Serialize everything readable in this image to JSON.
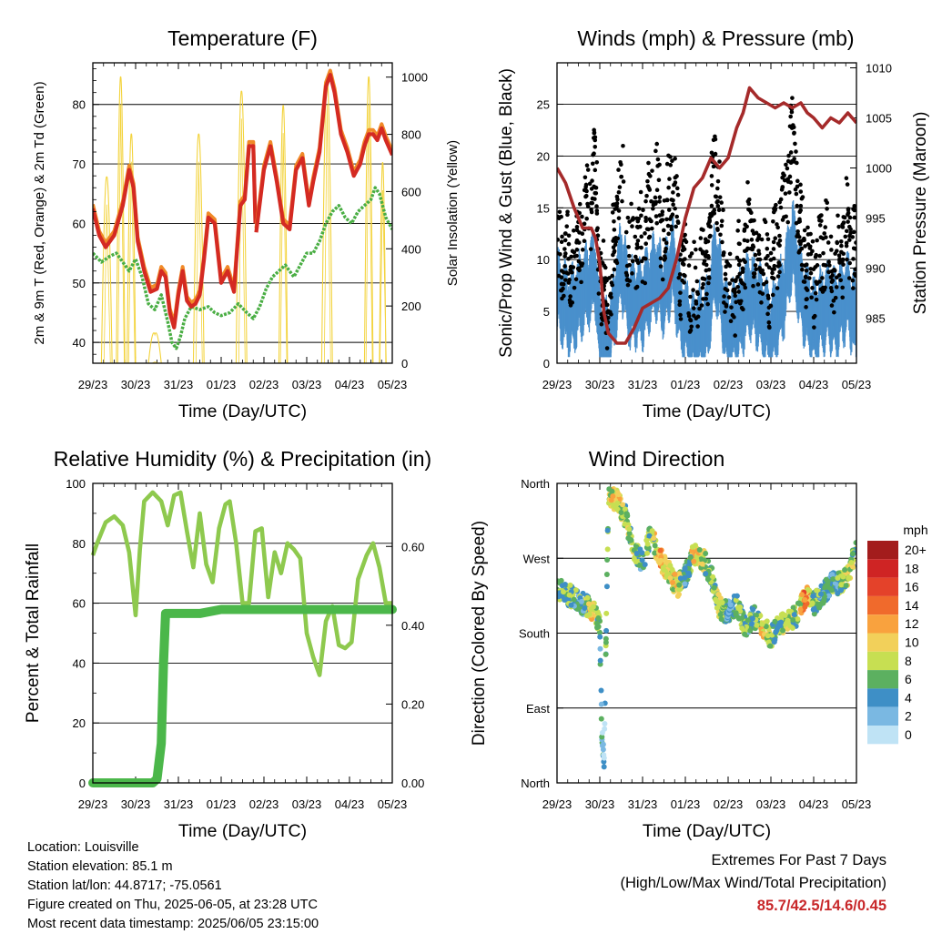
{
  "chart_data": [
    {
      "type": "line",
      "title": "Temperature (F)",
      "xlabel": "Time (Day/UTC)",
      "ylabel": "2m & 9m T (Red, Orange) & 2m Td (Green)",
      "y2label": "Solar Insolation (Yellow)",
      "x_ticks": [
        "29/23",
        "30/23",
        "31/23",
        "01/23",
        "02/23",
        "03/23",
        "04/23",
        "05/23"
      ],
      "xlim": [
        0,
        7
      ],
      "ylim": [
        36.5,
        87
      ],
      "y_ticks": [
        40,
        50,
        60,
        70,
        80
      ],
      "y2lim": [
        0,
        1050
      ],
      "y2_ticks": [
        0,
        200,
        400,
        600,
        800,
        1000
      ],
      "grid": "horizontal",
      "series": [
        {
          "name": "2m T",
          "color": "#d42a22",
          "axis": "left",
          "x": [
            0,
            0.15,
            0.3,
            0.5,
            0.7,
            0.85,
            0.95,
            1.05,
            1.2,
            1.35,
            1.5,
            1.6,
            1.7,
            1.8,
            1.9,
            2.0,
            2.1,
            2.2,
            2.3,
            2.4,
            2.5,
            2.6,
            2.7,
            2.85,
            3.0,
            3.15,
            3.3,
            3.45,
            3.55,
            3.65,
            3.75,
            3.8
          ],
          "y": [
            62.5,
            58,
            56,
            58,
            63,
            69,
            66,
            57,
            52,
            48.5,
            49,
            52,
            51,
            45,
            42.5,
            48,
            52,
            47,
            46,
            46.5,
            48,
            54,
            61,
            60,
            50,
            52,
            48.5,
            63,
            64,
            73,
            73,
            60
          ]
        },
        {
          "name": "2m T (cont.)",
          "color": "#d42a22",
          "axis": "left",
          "x": [
            3.82,
            4.0,
            4.15,
            4.3,
            4.45,
            4.6,
            4.75,
            4.9,
            5.05,
            5.15,
            5.3,
            5.45,
            5.55,
            5.65,
            5.8,
            5.95,
            6.1,
            6.25,
            6.35,
            6.45,
            6.55,
            6.65,
            6.75,
            6.85,
            7.0
          ],
          "y": [
            58.5,
            69,
            73,
            67,
            60,
            59,
            69,
            71,
            63,
            67,
            72,
            83,
            85,
            82,
            75,
            72,
            68,
            70,
            73,
            75,
            75,
            74,
            76,
            74,
            71.5
          ]
        },
        {
          "name": "2m Td",
          "color": "#4aae44",
          "axis": "left",
          "x": [
            0,
            0.2,
            0.4,
            0.55,
            0.7,
            0.85,
            1.0,
            1.15,
            1.3,
            1.45,
            1.6,
            1.75,
            1.85,
            1.95,
            2.05,
            2.15,
            2.3,
            2.5,
            2.7,
            2.85,
            3.0,
            3.2,
            3.4,
            3.6,
            3.75,
            3.9,
            4.05,
            4.2,
            4.35,
            4.5,
            4.7,
            4.85,
            5.0,
            5.15,
            5.3,
            5.45,
            5.6,
            5.75,
            5.9,
            6.05,
            6.2,
            6.35,
            6.5,
            6.6,
            6.7,
            6.85,
            7.0
          ],
          "y": [
            55,
            53.5,
            54.5,
            55,
            53.5,
            52,
            54,
            51,
            46.5,
            45.5,
            48,
            43.5,
            40,
            39,
            41,
            44,
            46,
            45.5,
            46,
            45,
            44.5,
            45,
            46.5,
            45,
            44,
            46,
            49,
            51,
            52,
            53,
            51,
            53,
            55,
            55,
            57,
            60,
            62,
            63,
            61,
            60,
            62,
            63,
            64,
            66,
            65,
            61,
            59
          ]
        },
        {
          "name": "Solar Insolation",
          "color": "#f3d33c",
          "axis": "right",
          "peaks": [
            {
              "x": [
                0.2,
                0.45
              ],
              "y": 650
            },
            {
              "x": [
                0.55,
                0.75
              ],
              "y": 1000
            },
            {
              "x": [
                0.8,
                1.0
              ],
              "y": 800
            },
            {
              "x": [
                1.3,
                1.6
              ],
              "y": 100
            },
            {
              "x": [
                2.35,
                2.6
              ],
              "y": 800
            },
            {
              "x": [
                3.35,
                3.6
              ],
              "y": 950
            },
            {
              "x": [
                4.35,
                4.55
              ],
              "y": 900
            },
            {
              "x": [
                5.35,
                5.6
              ],
              "y": 1000
            },
            {
              "x": [
                6.35,
                6.55
              ],
              "y": 1000
            },
            {
              "x": [
                6.7,
                6.85
              ],
              "y": 700
            }
          ]
        }
      ]
    },
    {
      "type": "scatter",
      "title": "Winds (mph) & Pressure (mb)",
      "xlabel": "Time (Day/UTC)",
      "ylabel": "Sonic/Prop Wind & Gust (Blue, Black)",
      "y2label": "Station Pressure (Maroon)",
      "x_ticks": [
        "29/23",
        "30/23",
        "31/23",
        "01/23",
        "02/23",
        "03/23",
        "04/23",
        "05/23"
      ],
      "xlim": [
        0,
        7
      ],
      "ylim": [
        0,
        29
      ],
      "y_ticks": [
        0,
        5,
        10,
        15,
        20,
        25
      ],
      "y2lim": [
        980.5,
        1010.5
      ],
      "y2_ticks": [
        985,
        990,
        995,
        1000,
        1005,
        1010
      ],
      "grid": "horizontal",
      "series": [
        {
          "name": "Gust",
          "color": "#000000",
          "axis": "left",
          "x": [
            0,
            0.3,
            0.6,
            0.9,
            1.0,
            1.2,
            1.5,
            1.7,
            2.0,
            2.3,
            2.5,
            2.7,
            2.9,
            3.2,
            3.5,
            3.7,
            4.0,
            4.3,
            4.5,
            4.7,
            5.0,
            5.3,
            5.5,
            5.7,
            6.0,
            6.3,
            6.5,
            6.8,
            7.0
          ],
          "y": [
            11,
            9,
            13,
            18,
            8,
            5,
            19,
            10,
            12,
            17,
            12,
            19,
            9,
            7,
            9,
            20,
            6,
            9,
            13,
            11,
            8,
            15,
            22,
            12,
            8,
            12,
            9,
            13,
            9
          ]
        },
        {
          "name": "Wind",
          "color": "#4a90cc",
          "axis": "left",
          "x": [
            0,
            0.3,
            0.6,
            0.9,
            1.0,
            1.2,
            1.5,
            1.7,
            2.0,
            2.3,
            2.5,
            2.7,
            2.9,
            3.2,
            3.5,
            3.7,
            4.0,
            4.3,
            4.5,
            4.7,
            5.0,
            5.3,
            5.5,
            5.7,
            6.0,
            6.3,
            6.5,
            6.8,
            7.0
          ],
          "y": [
            7,
            5,
            7,
            9,
            3,
            2,
            10,
            6,
            6,
            9,
            7,
            10,
            5,
            3,
            4,
            10,
            3,
            5,
            7,
            6,
            3,
            7,
            12,
            7,
            4,
            6,
            5,
            7,
            4
          ]
        },
        {
          "name": "Station Pressure",
          "color": "#a52a2a",
          "axis": "right",
          "x": [
            0,
            0.2,
            0.4,
            0.6,
            0.8,
            0.9,
            1.0,
            1.1,
            1.2,
            1.4,
            1.6,
            1.8,
            2.0,
            2.2,
            2.4,
            2.6,
            2.8,
            3.0,
            3.2,
            3.4,
            3.6,
            3.8,
            4.0,
            4.2,
            4.35,
            4.5,
            4.7,
            4.9,
            5.1,
            5.3,
            5.5,
            5.7,
            5.85,
            6.0,
            6.2,
            6.4,
            6.6,
            6.8,
            7.0
          ],
          "y": [
            1000,
            998.5,
            996,
            994,
            994,
            993,
            990.5,
            985.5,
            983.5,
            982.5,
            982.5,
            984,
            986,
            986.5,
            987,
            988,
            991,
            995,
            998,
            999,
            1001,
            1000,
            1001,
            1004,
            1005.5,
            1008,
            1007,
            1006.5,
            1006,
            1006.5,
            1006,
            1006.5,
            1005.5,
            1005,
            1004,
            1005,
            1004.5,
            1005.5,
            1004.5
          ]
        }
      ]
    },
    {
      "type": "line",
      "title": "Relative Humidity (%) & Precipitation (in)",
      "xlabel": "Time (Day/UTC)",
      "ylabel": "Percent & Total Rainfall",
      "x_ticks": [
        "29/23",
        "30/23",
        "31/23",
        "01/23",
        "02/23",
        "03/23",
        "04/23",
        "05/23"
      ],
      "xlim": [
        0,
        7
      ],
      "ylim": [
        0,
        100
      ],
      "y_ticks": [
        0,
        20,
        40,
        60,
        80,
        100
      ],
      "y2lim": [
        0,
        0.76
      ],
      "y2_ticks": [
        "0.00",
        "0.20",
        "0.40",
        "0.60"
      ],
      "grid": "horizontal",
      "series": [
        {
          "name": "Relative Humidity",
          "color": "#8ec94e",
          "axis": "left",
          "x": [
            0,
            0.1,
            0.3,
            0.5,
            0.7,
            0.85,
            1.0,
            1.1,
            1.2,
            1.4,
            1.6,
            1.75,
            1.9,
            2.05,
            2.2,
            2.35,
            2.5,
            2.65,
            2.8,
            2.95,
            3.1,
            3.2,
            3.35,
            3.5,
            3.65,
            3.8,
            3.95,
            4.1,
            4.25,
            4.4,
            4.55,
            4.7,
            4.85,
            5.0,
            5.15,
            5.3,
            5.45,
            5.6,
            5.75,
            5.9,
            6.05,
            6.2,
            6.4,
            6.55,
            6.7,
            6.85,
            7.0
          ],
          "y": [
            76,
            80,
            87,
            89,
            86,
            77,
            56,
            78,
            94,
            97,
            94,
            86,
            96,
            97,
            84,
            72,
            90,
            73,
            67,
            85,
            93,
            94,
            80,
            60,
            60,
            84,
            85,
            62,
            77,
            70,
            80,
            78,
            75,
            50,
            42,
            36,
            54,
            59,
            46,
            45,
            47,
            68,
            76,
            80,
            72,
            60,
            60
          ]
        },
        {
          "name": "Total Rainfall",
          "color": "#4bb74a",
          "axis": "right",
          "x": [
            0,
            1.2,
            1.4,
            1.5,
            1.6,
            1.65,
            1.7,
            1.8,
            2.0,
            2.5,
            3.0,
            4.0,
            5.0,
            6.0,
            7.0
          ],
          "y": [
            0,
            0,
            0,
            0.01,
            0.1,
            0.3,
            0.43,
            0.43,
            0.43,
            0.43,
            0.44,
            0.44,
            0.44,
            0.44,
            0.44
          ]
        }
      ]
    },
    {
      "type": "scatter",
      "title": "Wind Direction",
      "xlabel": "Time (Day/UTC)",
      "ylabel": "Direction (Colored By Speed)",
      "x_ticks": [
        "29/23",
        "30/23",
        "31/23",
        "01/23",
        "02/23",
        "03/23",
        "04/23",
        "05/23"
      ],
      "xlim": [
        0,
        7
      ],
      "ylim": [
        0,
        360
      ],
      "y_ticks": [
        "North",
        "East",
        "South",
        "West",
        "North"
      ],
      "grid": "horizontal",
      "legend": {
        "title": "mph",
        "labels": [
          "20+",
          "18",
          "16",
          "14",
          "12",
          "10",
          "8",
          "6",
          "4",
          "2",
          "0"
        ],
        "colors": [
          "#a31c1c",
          "#cf2424",
          "#e4422a",
          "#f06a2c",
          "#f9a23e",
          "#f2d05a",
          "#c7df52",
          "#5cb060",
          "#3e8fc6",
          "#7ab8e2",
          "#bfe3f5"
        ]
      },
      "series": [
        {
          "name": "Direction",
          "axis": "left",
          "x": [
            0,
            0.3,
            0.6,
            0.8,
            1.0,
            1.02,
            1.05,
            1.1,
            1.2,
            1.4,
            1.6,
            1.8,
            2.0,
            2.2,
            2.4,
            2.6,
            2.8,
            3.0,
            3.2,
            3.4,
            3.6,
            3.8,
            4.0,
            4.2,
            4.4,
            4.6,
            4.8,
            5.0,
            5.2,
            5.4,
            5.6,
            5.8,
            6.0,
            6.2,
            6.4,
            6.6,
            6.8,
            7.0
          ],
          "y": [
            235,
            225,
            215,
            210,
            190,
            130,
            60,
            20,
            345,
            340,
            320,
            280,
            265,
            300,
            270,
            255,
            235,
            250,
            275,
            270,
            250,
            210,
            205,
            215,
            185,
            200,
            190,
            175,
            190,
            195,
            200,
            225,
            215,
            225,
            240,
            240,
            250,
            280
          ],
          "speeds": [
            6,
            6,
            4,
            10,
            6,
            4,
            4,
            2,
            8,
            10,
            6,
            8,
            4,
            6,
            12,
            8,
            10,
            4,
            10,
            8,
            6,
            8,
            4,
            6,
            6,
            4,
            10,
            6,
            6,
            8,
            6,
            14,
            6,
            4,
            4,
            6,
            8,
            6
          ]
        }
      ]
    }
  ],
  "info": {
    "location": "Location: Louisville",
    "elevation": "Station elevation: 85.1 m",
    "latlon": "Station lat/lon: 44.8717; -75.0561",
    "created": "Figure created on Thu, 2025-06-05, at 23:28 UTC",
    "recent": "Most recent data timestamp: 2025/06/05 23:15:00",
    "extremes_title": "Extremes For Past 7 Days",
    "extremes_subtitle": "(High/Low/Max Wind/Total Precipitation)",
    "extremes_values": "85.7/42.5/14.6/0.45"
  }
}
